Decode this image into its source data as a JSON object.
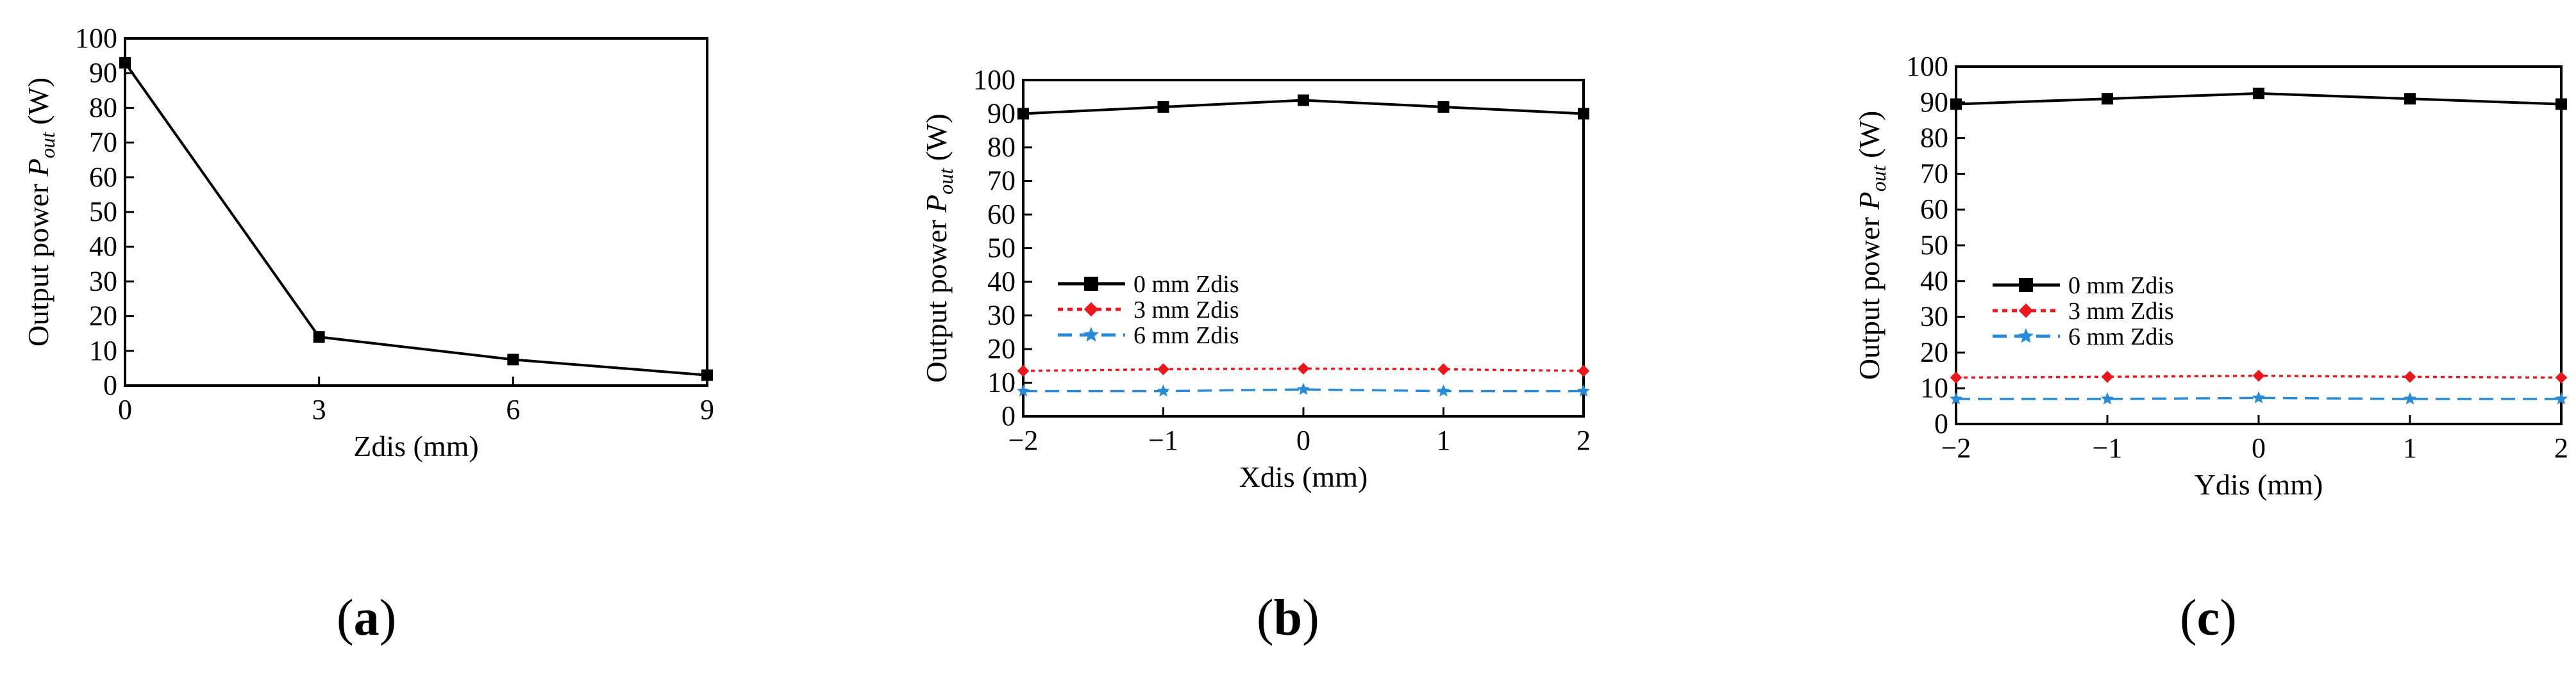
{
  "chart_data": [
    {
      "type": "line",
      "panel": "a",
      "xlabel": "Zdis (mm)",
      "ylabel_main": "Output power ",
      "ylabel_symbol": "P",
      "ylabel_sub": "out",
      "ylabel_unit": " (W)",
      "xlim": [
        0,
        9
      ],
      "ylim": [
        0,
        100
      ],
      "xticks": [
        0,
        3,
        6,
        9
      ],
      "xtick_labels": [
        "0",
        "3",
        "6",
        "9"
      ],
      "yticks": [
        0,
        10,
        20,
        30,
        40,
        50,
        60,
        70,
        80,
        90,
        100
      ],
      "ytick_labels": [
        "0",
        "10",
        "20",
        "30",
        "40",
        "50",
        "60",
        "70",
        "80",
        "90",
        "100"
      ],
      "series": [
        {
          "name": "",
          "color": "#000000",
          "marker": "square",
          "dash": "solid",
          "x": [
            0,
            3,
            6,
            9
          ],
          "values": [
            93,
            14,
            7.5,
            3
          ]
        }
      ]
    },
    {
      "type": "line",
      "panel": "b",
      "xlabel": "Xdis (mm)",
      "ylabel_main": "Output power ",
      "ylabel_symbol": "P",
      "ylabel_sub": "out",
      "ylabel_unit": " (W)",
      "xlim": [
        -2,
        2
      ],
      "ylim": [
        0,
        100
      ],
      "xticks": [
        -2,
        -1,
        0,
        1,
        2
      ],
      "xtick_labels": [
        "−2",
        "−1",
        "0",
        "1",
        "2"
      ],
      "yticks": [
        0,
        10,
        20,
        30,
        40,
        50,
        60,
        70,
        80,
        90,
        100
      ],
      "ytick_labels": [
        "0",
        "10",
        "20",
        "30",
        "40",
        "50",
        "60",
        "70",
        "80",
        "90",
        "100"
      ],
      "legend_position": "center-left",
      "series": [
        {
          "name": "0 mm Zdis",
          "color": "#000000",
          "marker": "square",
          "dash": "solid",
          "x": [
            -2,
            -1,
            0,
            1,
            2
          ],
          "values": [
            90,
            92,
            94,
            92,
            90
          ]
        },
        {
          "name": "3 mm Zdis",
          "color": "#e8191e",
          "marker": "diamond",
          "dash": "dotted",
          "x": [
            -2,
            -1,
            0,
            1,
            2
          ],
          "values": [
            13.5,
            14,
            14.2,
            14,
            13.5
          ]
        },
        {
          "name": "6 mm Zdis",
          "color": "#2a8ad6",
          "marker": "star",
          "dash": "dashed",
          "x": [
            -2,
            -1,
            0,
            1,
            2
          ],
          "values": [
            7.5,
            7.5,
            8,
            7.5,
            7.5
          ]
        }
      ]
    },
    {
      "type": "line",
      "panel": "c",
      "xlabel": "Ydis (mm)",
      "ylabel_main": "Output power ",
      "ylabel_symbol": "P",
      "ylabel_sub": "out",
      "ylabel_unit": " (W)",
      "xlim": [
        -2,
        2
      ],
      "ylim": [
        0,
        100
      ],
      "xticks": [
        -2,
        -1,
        0,
        1,
        2
      ],
      "xtick_labels": [
        "−2",
        "−1",
        "0",
        "1",
        "2"
      ],
      "yticks": [
        0,
        10,
        20,
        30,
        40,
        50,
        60,
        70,
        80,
        90,
        100
      ],
      "ytick_labels": [
        "0",
        "10",
        "20",
        "30",
        "40",
        "50",
        "60",
        "70",
        "80",
        "90",
        "100"
      ],
      "legend_position": "center-left",
      "series": [
        {
          "name": "0 mm Zdis",
          "color": "#000000",
          "marker": "square",
          "dash": "solid",
          "x": [
            -2,
            -1,
            0,
            1,
            2
          ],
          "values": [
            89.5,
            91,
            92.5,
            91,
            89.5
          ]
        },
        {
          "name": "3 mm Zdis",
          "color": "#e8191e",
          "marker": "diamond",
          "dash": "dotted",
          "x": [
            -2,
            -1,
            0,
            1,
            2
          ],
          "values": [
            13,
            13.2,
            13.5,
            13.2,
            13
          ]
        },
        {
          "name": "6 mm Zdis",
          "color": "#2a8ad6",
          "marker": "star",
          "dash": "dashed",
          "x": [
            -2,
            -1,
            0,
            1,
            2
          ],
          "values": [
            7,
            7,
            7.3,
            7,
            7
          ]
        }
      ]
    }
  ],
  "panel_labels": [
    "a",
    "b",
    "c"
  ]
}
